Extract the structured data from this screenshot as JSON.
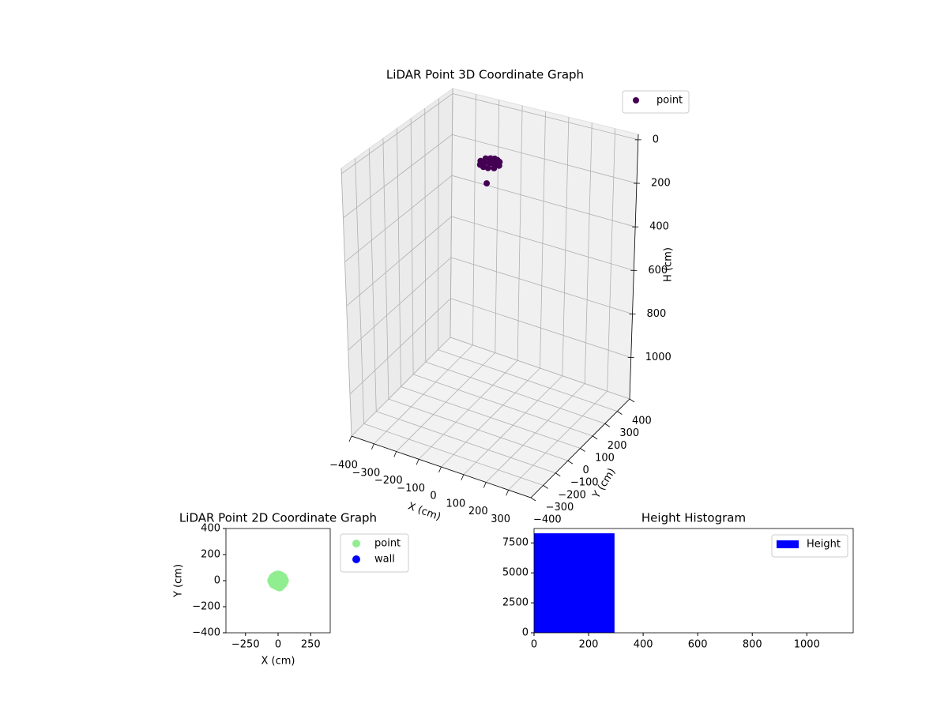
{
  "chart_data": [
    {
      "type": "scatter3d",
      "title": "LiDAR Point 3D Coordinate Graph",
      "xlabel": "X (cm)",
      "ylabel": "Y (cm)",
      "zlabel": "H (cm)",
      "xlim": [
        -400,
        400
      ],
      "ylim": [
        -400,
        400
      ],
      "zlim": [
        -25,
        1190
      ],
      "z_inverted": true,
      "xticks": [
        {
          "value": -400,
          "label": "−400"
        },
        {
          "value": -300,
          "label": "−300"
        },
        {
          "value": -200,
          "label": "−200"
        },
        {
          "value": -100,
          "label": "−100"
        },
        0,
        100,
        200,
        300
      ],
      "yticks": [
        {
          "value": -400,
          "label": "−400"
        },
        {
          "value": -300,
          "label": "−300"
        },
        {
          "value": -200,
          "label": "−200"
        },
        {
          "value": -100,
          "label": "−100"
        },
        0,
        100,
        200,
        300,
        400
      ],
      "zticks": [
        0,
        200,
        400,
        600,
        800,
        1000
      ],
      "grid": true,
      "legend": "upper right",
      "series": [
        {
          "name": "point",
          "color": "#440154",
          "x": [
            -30,
            -15,
            0,
            15,
            30,
            -40,
            -20,
            0,
            20,
            40,
            -30,
            -10,
            10,
            30,
            0,
            10
          ],
          "y": [
            20,
            30,
            35,
            30,
            20,
            0,
            0,
            0,
            0,
            0,
            -20,
            -30,
            -30,
            -20,
            10,
            -40
          ],
          "z": [
            25,
            25,
            25,
            25,
            25,
            30,
            30,
            30,
            30,
            30,
            35,
            35,
            35,
            35,
            28,
            100
          ]
        }
      ]
    },
    {
      "type": "scatter",
      "title": "LiDAR Point 2D Coordinate Graph",
      "xlabel": "X (cm)",
      "ylabel": "Y (cm)",
      "xlim": [
        -400,
        400
      ],
      "ylim": [
        -400,
        400
      ],
      "xticks": [
        {
          "value": -250,
          "label": "−250"
        },
        0,
        250
      ],
      "yticks": [
        {
          "value": -400,
          "label": "−400"
        },
        {
          "value": -200,
          "label": "−200"
        },
        0,
        200,
        400
      ],
      "legend": "outside upper right",
      "series": [
        {
          "name": "point",
          "color": "#90ee90",
          "x": [
            -30,
            -15,
            0,
            15,
            30,
            -40,
            -20,
            0,
            20,
            40,
            -30,
            -10,
            10,
            30,
            0,
            10
          ],
          "y": [
            20,
            30,
            35,
            30,
            20,
            0,
            0,
            0,
            0,
            0,
            -20,
            -30,
            -30,
            -20,
            10,
            -40
          ]
        },
        {
          "name": "wall",
          "color": "#0000ff",
          "x": [],
          "y": []
        }
      ]
    },
    {
      "type": "histogram",
      "title": "Height Histogram",
      "xlim": [
        0,
        1170
      ],
      "ylim": [
        0,
        8700
      ],
      "xticks": [
        0,
        200,
        400,
        600,
        800,
        1000
      ],
      "yticks": [
        0,
        2500,
        5000,
        7500
      ],
      "legend": "upper right",
      "series": [
        {
          "name": "Height",
          "color": "#0000ff",
          "bins": [
            0,
            295
          ],
          "values": [
            8300
          ]
        }
      ]
    }
  ]
}
